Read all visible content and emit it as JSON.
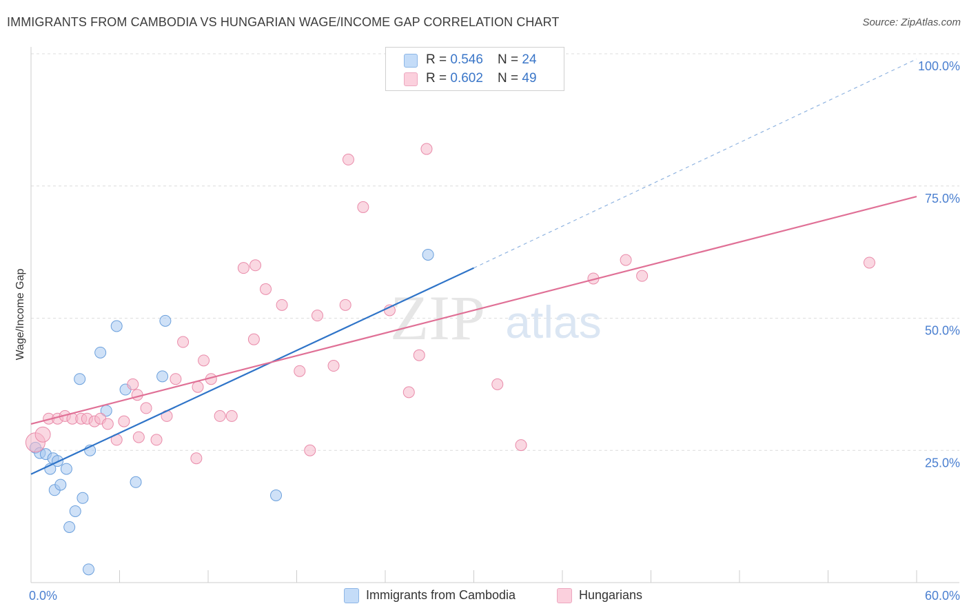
{
  "header": {
    "title": "IMMIGRANTS FROM CAMBODIA VS HUNGARIAN WAGE/INCOME GAP CORRELATION CHART",
    "source": "Source: ZipAtlas.com"
  },
  "watermark": {
    "zip": "ZIP",
    "atlas": "atlas"
  },
  "legend": {
    "rows": [
      {
        "r_label": "R = ",
        "r_value": "0.546",
        "n_label": "N = ",
        "n_value": "24",
        "color": "#a8c8f0"
      },
      {
        "r_label": "R = ",
        "r_value": "0.602",
        "n_label": "N = ",
        "n_value": "49",
        "color": "#f5b8cb"
      }
    ]
  },
  "bottom_legend": [
    {
      "label": "Immigrants from Cambodia",
      "color": "#a8c8f0"
    },
    {
      "label": "Hungarians",
      "color": "#f5b8cb"
    }
  ],
  "chart_data": {
    "type": "scatter",
    "title": "IMMIGRANTS FROM CAMBODIA VS HUNGARIAN WAGE/INCOME GAP CORRELATION CHART",
    "xlabel": "",
    "ylabel": "Wage/Income Gap",
    "xlim": [
      0,
      60
    ],
    "ylim": [
      0,
      100
    ],
    "x_tick_labels": [
      {
        "value": 0,
        "label": "0.0%"
      },
      {
        "value": 60,
        "label": "60.0%"
      }
    ],
    "y_tick_labels": [
      {
        "value": 25,
        "label": "25.0%"
      },
      {
        "value": 50,
        "label": "50.0%"
      },
      {
        "value": 75,
        "label": "75.0%"
      },
      {
        "value": 100,
        "label": "100.0%"
      }
    ],
    "grid": true,
    "legend_position": "top-center",
    "series": [
      {
        "name": "Immigrants from Cambodia",
        "color": "#a8c8f0",
        "stroke": "#6a9fdc",
        "line_color": "#2f74c8",
        "points": [
          [
            0.3,
            25.5
          ],
          [
            0.6,
            24.5
          ],
          [
            1.0,
            24.3
          ],
          [
            1.3,
            21.5
          ],
          [
            1.5,
            23.5
          ],
          [
            1.6,
            17.5
          ],
          [
            1.8,
            23.0
          ],
          [
            2.0,
            18.5
          ],
          [
            2.4,
            21.5
          ],
          [
            2.6,
            10.5
          ],
          [
            3.0,
            13.5
          ],
          [
            3.3,
            38.5
          ],
          [
            3.5,
            16.0
          ],
          [
            3.9,
            2.5
          ],
          [
            4.0,
            25.0
          ],
          [
            4.7,
            43.5
          ],
          [
            5.1,
            32.5
          ],
          [
            5.8,
            48.5
          ],
          [
            6.4,
            36.5
          ],
          [
            7.1,
            19.0
          ],
          [
            8.9,
            39.0
          ],
          [
            9.1,
            49.5
          ],
          [
            16.6,
            16.5
          ],
          [
            26.9,
            62.0
          ]
        ],
        "trend": {
          "x0": 0,
          "y0": 20.5,
          "x1": 30,
          "y1": 59.5,
          "dash_x1": 60,
          "dash_y1": 99.0
        }
      },
      {
        "name": "Hungarians",
        "color": "#f5b8cb",
        "stroke": "#e98aa9",
        "line_color": "#e07096",
        "points": [
          [
            0.3,
            26.5
          ],
          [
            0.8,
            28.0
          ],
          [
            1.2,
            31.0
          ],
          [
            1.8,
            31.0
          ],
          [
            2.3,
            31.5
          ],
          [
            2.8,
            31.0
          ],
          [
            3.4,
            31.0
          ],
          [
            3.8,
            31.0
          ],
          [
            4.3,
            30.5
          ],
          [
            4.7,
            31.0
          ],
          [
            5.2,
            30.0
          ],
          [
            5.8,
            27.0
          ],
          [
            6.3,
            30.5
          ],
          [
            6.9,
            37.5
          ],
          [
            7.2,
            35.5
          ],
          [
            7.3,
            27.5
          ],
          [
            7.8,
            33.0
          ],
          [
            8.5,
            27.0
          ],
          [
            9.2,
            31.5
          ],
          [
            9.8,
            38.5
          ],
          [
            10.3,
            45.5
          ],
          [
            11.3,
            37.0
          ],
          [
            11.2,
            23.5
          ],
          [
            11.7,
            42.0
          ],
          [
            12.2,
            38.5
          ],
          [
            12.8,
            31.5
          ],
          [
            13.6,
            31.5
          ],
          [
            14.4,
            59.5
          ],
          [
            15.1,
            46.0
          ],
          [
            15.2,
            60.0
          ],
          [
            15.9,
            55.5
          ],
          [
            17.0,
            52.5
          ],
          [
            18.2,
            40.0
          ],
          [
            18.9,
            25.0
          ],
          [
            19.4,
            50.5
          ],
          [
            20.5,
            41.0
          ],
          [
            21.3,
            52.5
          ],
          [
            21.5,
            80.0
          ],
          [
            22.5,
            71.0
          ],
          [
            24.3,
            51.5
          ],
          [
            25.6,
            36.0
          ],
          [
            26.3,
            43.0
          ],
          [
            26.8,
            82.0
          ],
          [
            31.6,
            37.5
          ],
          [
            33.2,
            26.0
          ],
          [
            38.1,
            57.5
          ],
          [
            40.3,
            61.0
          ],
          [
            41.4,
            58.0
          ],
          [
            56.8,
            60.5
          ]
        ],
        "trend": {
          "x0": 0,
          "y0": 30.0,
          "x1": 60,
          "y1": 73.0
        }
      }
    ]
  }
}
